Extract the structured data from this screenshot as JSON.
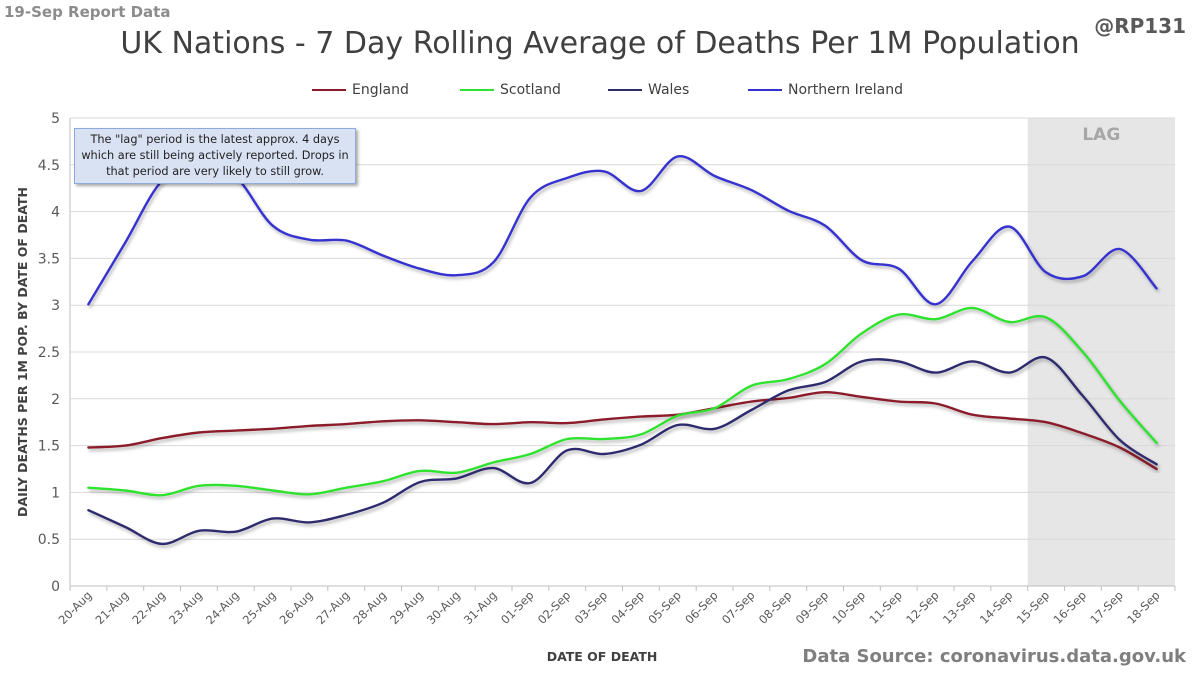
{
  "header": {
    "report_label": "19-Sep Report Data",
    "handle": "@RP131"
  },
  "footer": {
    "source": "Data Source: coronavirus.data.gov.uk"
  },
  "note": "The \"lag\" period is the latest approx. 4 days which are still being actively reported. Drops in that period are very likely to still grow.",
  "chart_data": {
    "type": "line",
    "title": "UK Nations - 7 Day Rolling Average of Deaths Per 1M Population",
    "xlabel": "DATE OF DEATH",
    "ylabel": "DAILY DEATHS PER 1M POP. BY DATE OF DEATH",
    "ylim": [
      0,
      5
    ],
    "yticks": [
      "0",
      "0.5",
      "1",
      "1.5",
      "2",
      "2.5",
      "3",
      "3.5",
      "4",
      "4.5",
      "5"
    ],
    "grid": true,
    "legend": "top",
    "lag_label": "LAG",
    "lag_start": "15-Sep",
    "lag_end": "18-Sep",
    "categories": [
      "20-Aug",
      "21-Aug",
      "22-Aug",
      "23-Aug",
      "24-Aug",
      "25-Aug",
      "26-Aug",
      "27-Aug",
      "28-Aug",
      "29-Aug",
      "30-Aug",
      "31-Aug",
      "01-Sep",
      "02-Sep",
      "03-Sep",
      "04-Sep",
      "05-Sep",
      "06-Sep",
      "07-Sep",
      "08-Sep",
      "09-Sep",
      "10-Sep",
      "11-Sep",
      "12-Sep",
      "13-Sep",
      "14-Sep",
      "15-Sep",
      "16-Sep",
      "17-Sep",
      "18-Sep"
    ],
    "series": [
      {
        "name": "England",
        "color": "#8b1a2b",
        "values": [
          1.48,
          1.5,
          1.58,
          1.64,
          1.66,
          1.68,
          1.71,
          1.73,
          1.76,
          1.77,
          1.75,
          1.73,
          1.75,
          1.74,
          1.78,
          1.81,
          1.83,
          1.9,
          1.97,
          2.01,
          2.07,
          2.02,
          1.97,
          1.95,
          1.83,
          1.79,
          1.75,
          1.63,
          1.48,
          1.25
        ]
      },
      {
        "name": "Scotland",
        "color": "#2fe22f",
        "values": [
          1.05,
          1.02,
          0.97,
          1.07,
          1.07,
          1.02,
          0.98,
          1.05,
          1.12,
          1.23,
          1.21,
          1.32,
          1.41,
          1.57,
          1.57,
          1.62,
          1.82,
          1.9,
          2.14,
          2.21,
          2.37,
          2.7,
          2.9,
          2.85,
          2.97,
          2.82,
          2.87,
          2.5,
          1.98,
          1.53
        ]
      },
      {
        "name": "Wales",
        "color": "#2e2a6e",
        "values": [
          0.81,
          0.63,
          0.45,
          0.59,
          0.58,
          0.72,
          0.68,
          0.76,
          0.89,
          1.11,
          1.15,
          1.26,
          1.1,
          1.45,
          1.41,
          1.51,
          1.72,
          1.68,
          1.88,
          2.09,
          2.18,
          2.4,
          2.4,
          2.28,
          2.4,
          2.28,
          2.44,
          2.03,
          1.56,
          1.3
        ]
      },
      {
        "name": "Northern Ireland",
        "color": "#3432cf",
        "values": [
          3.01,
          3.67,
          4.33,
          4.49,
          4.37,
          3.85,
          3.7,
          3.69,
          3.53,
          3.39,
          3.32,
          3.46,
          4.15,
          4.36,
          4.43,
          4.22,
          4.59,
          4.38,
          4.23,
          4.01,
          3.85,
          3.48,
          3.39,
          3.01,
          3.47,
          3.84,
          3.35,
          3.31,
          3.6,
          3.18
        ]
      }
    ]
  }
}
